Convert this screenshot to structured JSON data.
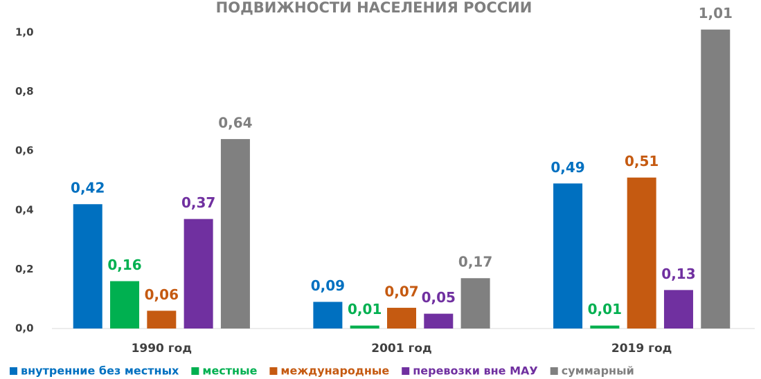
{
  "chart_data": {
    "type": "bar",
    "title": "ПОДВИЖНОСТИ НАСЕЛЕНИЯ РОССИИ",
    "categories": [
      "1990 год",
      "2001 год",
      "2019 год"
    ],
    "series": [
      {
        "name": "внутренние без местных",
        "color": "#0070c0",
        "values": [
          0.42,
          0.09,
          0.49
        ],
        "value_labels": [
          "0,42",
          "0,09",
          "0,49"
        ]
      },
      {
        "name": "местные",
        "color": "#00b050",
        "values": [
          0.16,
          0.01,
          0.01
        ],
        "value_labels": [
          "0,16",
          "0,01",
          "0,01"
        ]
      },
      {
        "name": "международные",
        "color": "#c55a11",
        "values": [
          0.06,
          0.07,
          0.51
        ],
        "value_labels": [
          "0,06",
          "0,07",
          "0,51"
        ]
      },
      {
        "name": "перевозки вне МАУ",
        "color": "#7030a0",
        "values": [
          0.37,
          0.05,
          0.13
        ],
        "value_labels": [
          "0,37",
          "0,05",
          "0,13"
        ]
      },
      {
        "name": "суммарный",
        "color": "#808080",
        "values": [
          0.64,
          0.17,
          1.01
        ],
        "value_labels": [
          "0,64",
          "0,17",
          "1,01"
        ]
      }
    ],
    "ylim": [
      0,
      1.0
    ],
    "yticks": [
      {
        "value": 0,
        "label": "0,0"
      },
      {
        "value": 0.2,
        "label": "0,2"
      },
      {
        "value": 0.4,
        "label": "0,4"
      },
      {
        "value": 0.6,
        "label": "0,6"
      },
      {
        "value": 0.8,
        "label": "0,8"
      },
      {
        "value": 1.0,
        "label": "1,0"
      }
    ],
    "legend": "bottom"
  }
}
